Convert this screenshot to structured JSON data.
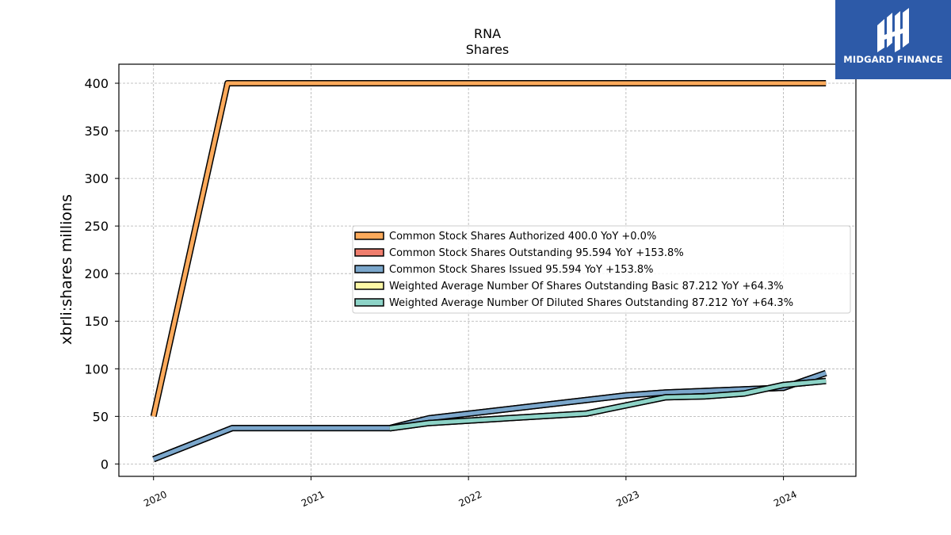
{
  "brand": {
    "name": "MIDGARD FINANCE",
    "bg_color": "#2d5aa8"
  },
  "chart_data": {
    "type": "line",
    "title": "RNA",
    "subtitle": "Shares",
    "xlabel": "",
    "ylabel": "xbrli:shares millions",
    "xlim": [
      2019.78,
      2024.46
    ],
    "ylim": [
      -13,
      420
    ],
    "x_ticks": [
      2020,
      2021,
      2022,
      2023,
      2024
    ],
    "x_tick_labels": [
      "2020",
      "2021",
      "2022",
      "2023",
      "2024"
    ],
    "y_ticks": [
      0,
      50,
      100,
      150,
      200,
      250,
      300,
      350,
      400
    ],
    "y_tick_labels": [
      "0",
      "50",
      "100",
      "150",
      "200",
      "250",
      "300",
      "350",
      "400"
    ],
    "grid": true,
    "legend_position": "center-right",
    "series": [
      {
        "name": "Common Stock Shares Authorized  400.0 YoY +0.0%",
        "color": "#fdaa5b",
        "points": [
          [
            2020.0,
            50
          ],
          [
            2020.47,
            400
          ],
          [
            2024.27,
            400
          ]
        ]
      },
      {
        "name": "Common Stock Shares Outstanding  95.594 YoY +153.8%",
        "color": "#f07e6e",
        "points": [
          [
            2020.0,
            5
          ],
          [
            2020.5,
            37.7
          ],
          [
            2021.5,
            37.7
          ],
          [
            2021.75,
            48
          ],
          [
            2023.0,
            72
          ],
          [
            2023.25,
            75
          ],
          [
            2024.0,
            80
          ],
          [
            2024.27,
            95.594
          ]
        ]
      },
      {
        "name": "Common Stock Shares Issued  95.594 YoY +153.8%",
        "color": "#7ba7cc",
        "points": [
          [
            2020.0,
            5
          ],
          [
            2020.5,
            37.7
          ],
          [
            2021.5,
            37.7
          ],
          [
            2021.75,
            48
          ],
          [
            2023.0,
            72
          ],
          [
            2023.25,
            75
          ],
          [
            2024.0,
            80
          ],
          [
            2024.27,
            95.594
          ]
        ]
      },
      {
        "name": "Weighted Average Number Of Shares Outstanding Basic  87.212 YoY +64.3%",
        "color": "#fdf8a6",
        "points": [
          [
            2021.5,
            37.5
          ],
          [
            2021.75,
            43
          ],
          [
            2022.75,
            53
          ],
          [
            2023.25,
            70
          ],
          [
            2023.5,
            71
          ],
          [
            2023.75,
            74
          ],
          [
            2024.0,
            83
          ],
          [
            2024.27,
            87.212
          ]
        ]
      },
      {
        "name": "Weighted Average Number Of Diluted Shares Outstanding  87.212 YoY +64.3%",
        "color": "#8dd3c7",
        "points": [
          [
            2021.5,
            37.5
          ],
          [
            2021.75,
            43
          ],
          [
            2022.75,
            53
          ],
          [
            2023.25,
            70
          ],
          [
            2023.5,
            71
          ],
          [
            2023.75,
            74
          ],
          [
            2024.0,
            83
          ],
          [
            2024.27,
            87.212
          ]
        ]
      }
    ]
  }
}
